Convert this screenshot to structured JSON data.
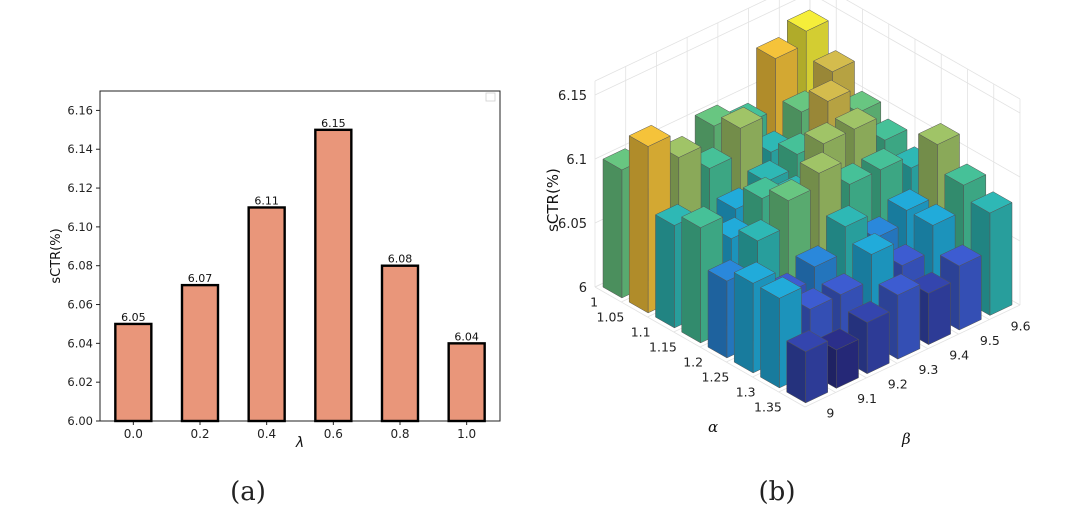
{
  "chart_data": [
    {
      "type": "bar",
      "title": "",
      "caption": "(a)",
      "xlabel": "λ",
      "ylabel": "sCTR(%)",
      "categories": [
        "0.0",
        "0.2",
        "0.4",
        "0.6",
        "0.8",
        "1.0"
      ],
      "values": [
        6.05,
        6.07,
        6.11,
        6.15,
        6.08,
        6.04
      ],
      "data_labels": [
        "6.05",
        "6.07",
        "6.11",
        "6.15",
        "6.08",
        "6.04"
      ],
      "ylim": [
        6.0,
        6.17
      ],
      "yticks": [
        "6.00",
        "6.02",
        "6.04",
        "6.06",
        "6.08",
        "6.10",
        "6.12",
        "6.14",
        "6.16"
      ],
      "bar_color": "#e9967a",
      "edge_color": "#000000",
      "grid": false
    },
    {
      "type": "bar3d",
      "title": "",
      "caption": "(b)",
      "xlabel": "α",
      "ylabel": "β",
      "zlabel": "sCTR(%)",
      "alpha_ticks": [
        "1",
        "1.05",
        "1.1",
        "1.15",
        "1.2",
        "1.25",
        "1.3",
        "1.35"
      ],
      "beta_ticks": [
        "9",
        "9.1",
        "9.2",
        "9.3",
        "9.4",
        "9.5",
        "9.6"
      ],
      "zticks": [
        "6",
        "6.05",
        "6.1",
        "6.15"
      ],
      "zlim": [
        6.0,
        6.15
      ],
      "grid": true,
      "values": [
        [
          6.1,
          6.06,
          6.07,
          6.1,
          6.09,
          6.13,
          6.14
        ],
        [
          6.13,
          6.11,
          6.09,
          6.11,
          6.08,
          6.1,
          6.12
        ],
        [
          6.08,
          6.06,
          6.07,
          6.08,
          6.09,
          6.12,
          6.1
        ],
        [
          6.09,
          6.07,
          6.09,
          6.08,
          6.11,
          6.11,
          6.09
        ],
        [
          6.06,
          6.08,
          6.1,
          6.11,
          6.09,
          6.09,
          6.08
        ],
        [
          6.07,
          6.05,
          6.06,
          6.08,
          6.06,
          6.07,
          6.11
        ],
        [
          6.07,
          6.05,
          6.05,
          6.07,
          6.05,
          6.07,
          6.09
        ],
        [
          6.04,
          6.03,
          6.04,
          6.05,
          6.04,
          6.05,
          6.08
        ]
      ]
    }
  ]
}
